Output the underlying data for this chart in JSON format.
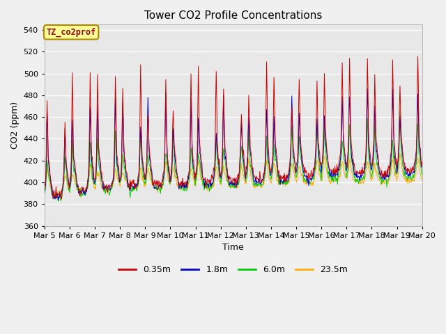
{
  "title": "Tower CO2 Profile Concentrations",
  "xlabel": "Time",
  "ylabel": "CO2 (ppm)",
  "ylim": [
    360,
    545
  ],
  "yticks": [
    360,
    380,
    400,
    420,
    440,
    460,
    480,
    500,
    520,
    540
  ],
  "fig_bg_color": "#f0f0f0",
  "plot_bg_color": "#e8e8e8",
  "line_colors": {
    "0.35m": "#cc0000",
    "1.8m": "#0000cc",
    "6.0m": "#00cc00",
    "23.5m": "#ffaa00"
  },
  "annotation_text": "TZ_co2prof",
  "annotation_bg": "#ffff99",
  "annotation_border": "#aa8800",
  "xtick_labels": [
    "Mar 5",
    "Mar 6",
    "Mar 7",
    "Mar 8",
    "Mar 9",
    "Mar 10",
    "Mar 11",
    "Mar 12",
    "Mar 13",
    "Mar 14",
    "Mar 15",
    "Mar 16",
    "Mar 17",
    "Mar 18",
    "Mar 19",
    "Mar 20"
  ],
  "n_days": 15,
  "n_pts_per_day": 48
}
